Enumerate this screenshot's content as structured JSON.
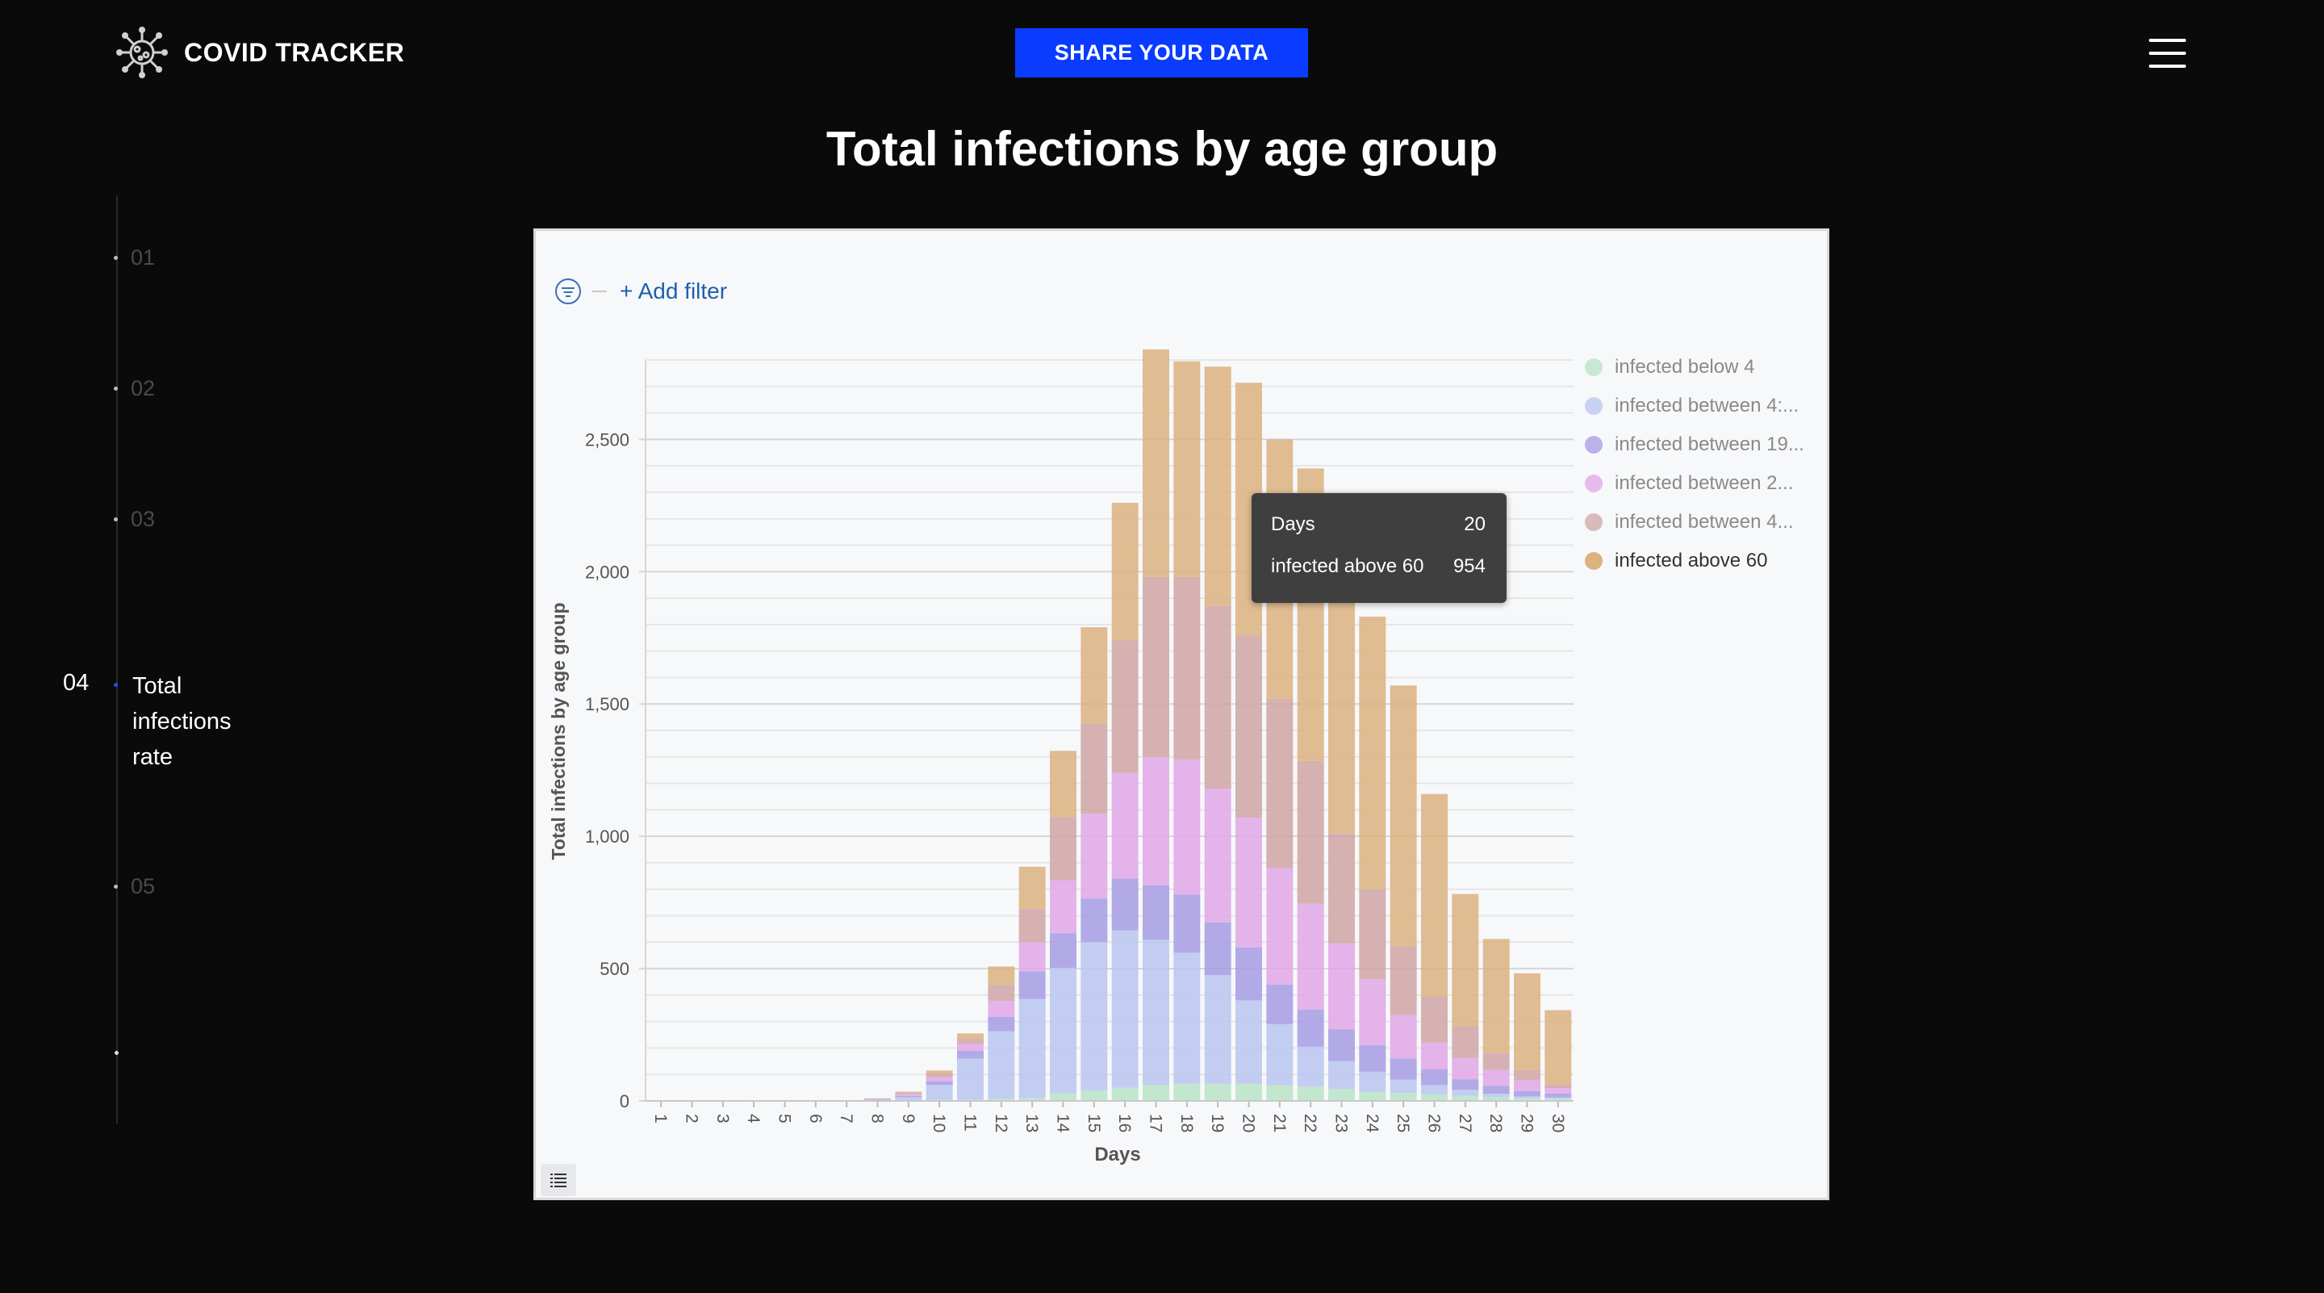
{
  "header": {
    "brand": "COVID TRACKER",
    "share_button": "SHARE YOUR DATA"
  },
  "page_title": "Total infections by age group",
  "nav": {
    "items": [
      "01",
      "02",
      "03",
      "05"
    ],
    "active": {
      "number": "04",
      "label": [
        "Total",
        "infections",
        "rate"
      ]
    }
  },
  "filter": {
    "add_filter": "+ Add filter"
  },
  "tooltip": {
    "rows": [
      {
        "label": "Days",
        "value": "20"
      },
      {
        "label": "infected above 60",
        "value": "954"
      }
    ]
  },
  "chart_data": {
    "type": "bar",
    "stacked": true,
    "xlabel": "Days",
    "ylabel": "Total infections by age group",
    "ylim": [
      0,
      2800
    ],
    "yticks": [
      0,
      500,
      1000,
      1500,
      2000,
      2500
    ],
    "ytick_labels": [
      "0",
      "500",
      "1,000",
      "1,500",
      "2,000",
      "2,500"
    ],
    "grid": true,
    "legend_position": "right",
    "categories": [
      "1",
      "2",
      "3",
      "4",
      "5",
      "6",
      "7",
      "8",
      "9",
      "10",
      "11",
      "12",
      "13",
      "14",
      "15",
      "16",
      "17",
      "18",
      "19",
      "20",
      "21",
      "22",
      "23",
      "24",
      "25",
      "26",
      "27",
      "28",
      "29",
      "30"
    ],
    "series": [
      {
        "name": "infected below 4",
        "color": "#b9e3c6",
        "values": [
          0,
          0,
          0,
          0,
          0,
          0,
          0,
          0,
          2,
          5,
          5,
          8,
          10,
          28,
          40,
          50,
          60,
          65,
          65,
          65,
          60,
          55,
          45,
          35,
          30,
          25,
          20,
          15,
          10,
          8
        ]
      },
      {
        "name": "infected between 4:...",
        "color": "#b8c6ef",
        "values": [
          0,
          0,
          0,
          0,
          0,
          0,
          0,
          3,
          12,
          55,
          155,
          255,
          375,
          475,
          560,
          595,
          550,
          495,
          410,
          315,
          230,
          150,
          105,
          75,
          50,
          35,
          22,
          12,
          7,
          5
        ]
      },
      {
        "name": "infected between 19...",
        "color": "#a69be3",
        "values": [
          0,
          0,
          0,
          0,
          0,
          0,
          0,
          2,
          5,
          15,
          30,
          55,
          105,
          130,
          165,
          195,
          205,
          220,
          200,
          200,
          150,
          140,
          120,
          100,
          80,
          60,
          40,
          30,
          20,
          15
        ]
      },
      {
        "name": "infected between 2...",
        "color": "#dfa7e6",
        "values": [
          0,
          0,
          0,
          0,
          0,
          0,
          0,
          2,
          6,
          15,
          25,
          60,
          110,
          200,
          320,
          400,
          485,
          510,
          505,
          490,
          440,
          400,
          325,
          250,
          165,
          100,
          80,
          60,
          40,
          20
        ]
      },
      {
        "name": "infected between 4...",
        "color": "#cfa5a4",
        "values": [
          0,
          0,
          0,
          0,
          0,
          0,
          0,
          1,
          5,
          15,
          20,
          60,
          125,
          240,
          340,
          500,
          680,
          690,
          690,
          690,
          640,
          540,
          415,
          340,
          260,
          175,
          120,
          65,
          40,
          15
        ]
      },
      {
        "name": "infected above 60",
        "color": "#dcb27f",
        "values": [
          0,
          0,
          0,
          0,
          0,
          0,
          0,
          2,
          5,
          10,
          20,
          70,
          160,
          250,
          365,
          520,
          860,
          815,
          905,
          954,
          980,
          1105,
          1040,
          1030,
          985,
          765,
          500,
          430,
          365,
          280
        ]
      }
    ]
  }
}
